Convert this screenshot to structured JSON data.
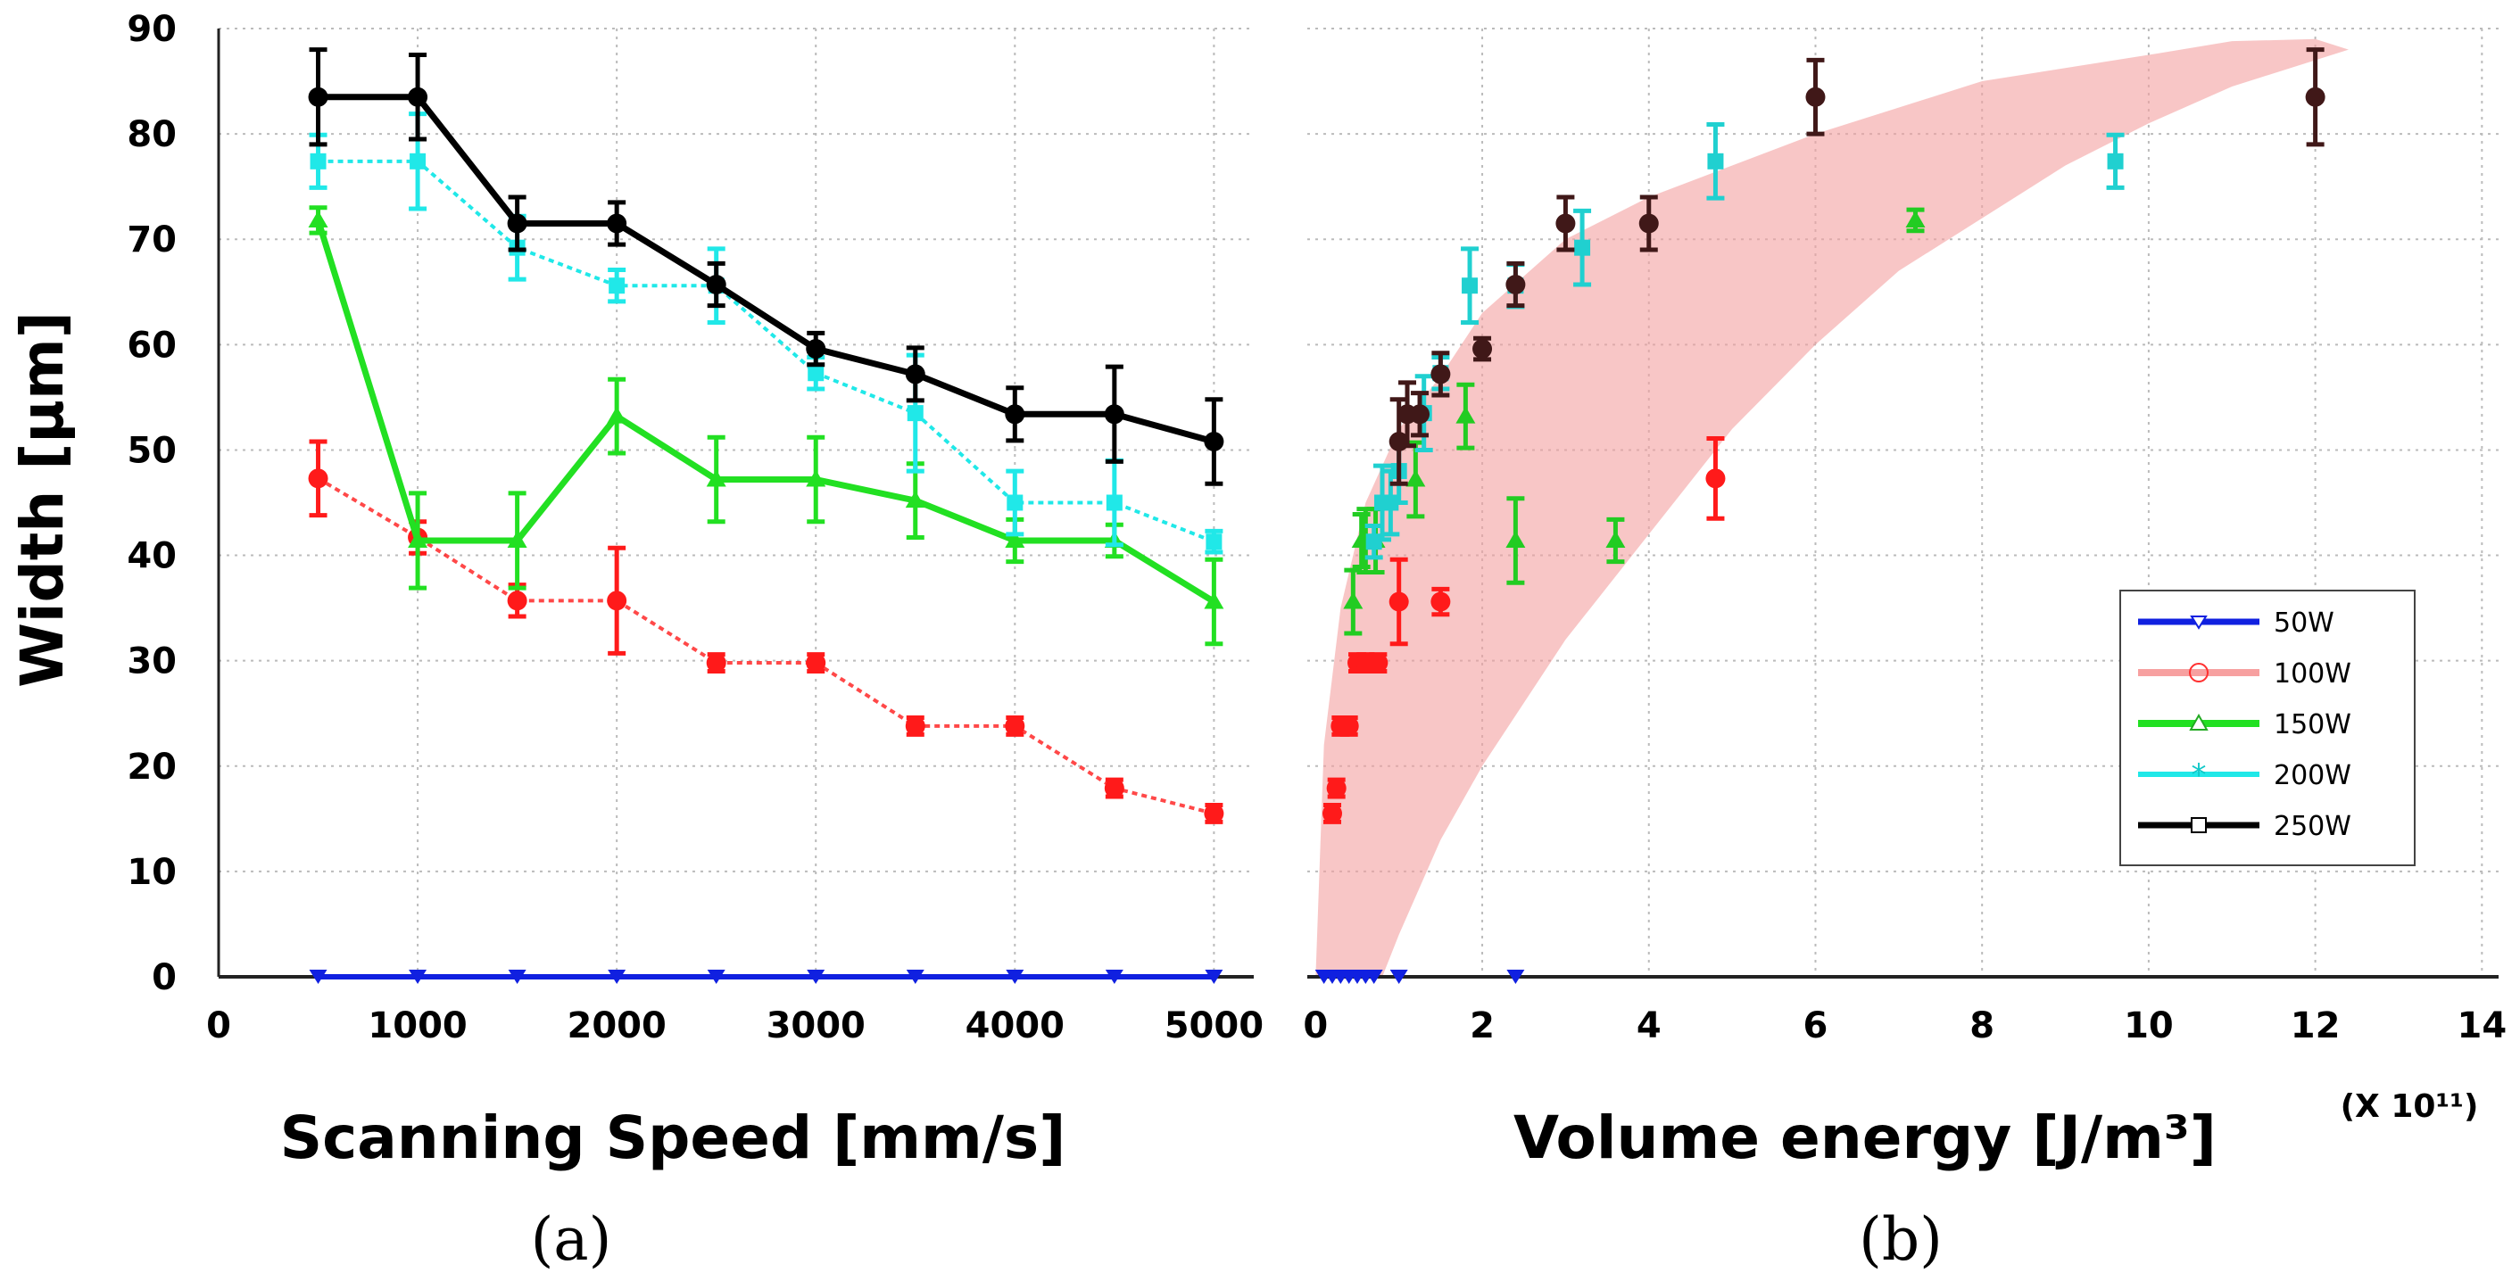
{
  "chart_data": [
    {
      "type": "line",
      "panel_label": "(a)",
      "xlabel": "Scanning Speed [mm/s]",
      "ylabel": "Width [µm]",
      "xlim": [
        0,
        5200
      ],
      "ylim": [
        0,
        90
      ],
      "xticks": [
        "0",
        "1000",
        "2000",
        "3000",
        "4000",
        "5000"
      ],
      "yticks": [
        "0",
        "10",
        "20",
        "30",
        "40",
        "50",
        "60",
        "70",
        "80",
        "90"
      ],
      "grid": true,
      "x": [
        500,
        1000,
        1500,
        2000,
        2500,
        3000,
        3500,
        4000,
        4500,
        5000
      ],
      "series": [
        {
          "name": "50W",
          "color": "#1020e0",
          "values": [
            0,
            0,
            0,
            0,
            0,
            0,
            0,
            0,
            0,
            0
          ],
          "err": [
            0,
            0,
            0,
            0,
            0,
            0,
            0,
            0,
            0,
            0
          ]
        },
        {
          "name": "100W",
          "color": "#ff1a1a",
          "values": [
            47.3,
            41.7,
            35.7,
            35.7,
            29.8,
            29.8,
            23.8,
            23.8,
            17.9,
            15.5
          ],
          "err": [
            3.5,
            1.5,
            1.5,
            5,
            0.8,
            0.8,
            0.8,
            0.8,
            0.8,
            0.8
          ]
        },
        {
          "name": "150W",
          "color": "#22e022",
          "values": [
            71.8,
            41.4,
            41.4,
            53.2,
            47.2,
            47.2,
            45.2,
            41.4,
            41.4,
            35.6
          ],
          "err": [
            1.2,
            4.5,
            4.5,
            3.5,
            4,
            4,
            3.5,
            2,
            1.5,
            4
          ]
        },
        {
          "name": "200W",
          "color": "#20e8e8",
          "values": [
            77.4,
            77.4,
            69.2,
            65.6,
            65.6,
            57.3,
            53.5,
            45,
            45,
            41.3
          ],
          "err": [
            2.5,
            4.5,
            3,
            1.5,
            3.5,
            1.5,
            5.5,
            3,
            4,
            1
          ]
        },
        {
          "name": "250W",
          "color": "#000000",
          "values": [
            83.5,
            83.5,
            71.5,
            71.5,
            65.7,
            59.6,
            57.2,
            53.4,
            53.4,
            50.8
          ],
          "err": [
            4.5,
            4,
            2.5,
            2,
            2,
            1.5,
            2.5,
            2.5,
            4.5,
            4
          ]
        }
      ]
    },
    {
      "type": "scatter",
      "panel_label": "(b)",
      "xlabel": "Volume energy [J/m³]",
      "x_multiplier": "(X 10¹¹)",
      "xlim": [
        -0.1,
        14.2
      ],
      "ylim": [
        0,
        90
      ],
      "xticks": [
        "0",
        "2",
        "4",
        "6",
        "8",
        "10",
        "12",
        "14"
      ],
      "grid": true,
      "band_color": "#f3a0a0",
      "band_upper": [
        [
          0,
          0
        ],
        [
          0.1,
          22
        ],
        [
          0.3,
          35
        ],
        [
          0.6,
          45
        ],
        [
          1,
          52
        ],
        [
          1.5,
          57
        ],
        [
          2,
          63
        ],
        [
          3,
          70
        ],
        [
          4,
          74
        ],
        [
          6,
          80
        ],
        [
          8,
          85
        ],
        [
          10,
          87.5
        ],
        [
          11,
          88.8
        ],
        [
          12,
          89
        ],
        [
          12.4,
          88
        ]
      ],
      "band_lower": [
        [
          0.8,
          0
        ],
        [
          1,
          4
        ],
        [
          1.5,
          13
        ],
        [
          2,
          20
        ],
        [
          3,
          32
        ],
        [
          4,
          42
        ],
        [
          5,
          52
        ],
        [
          6,
          60
        ],
        [
          7,
          67
        ],
        [
          8,
          72
        ],
        [
          9,
          77
        ],
        [
          10,
          81
        ],
        [
          11,
          84.5
        ],
        [
          12.4,
          88
        ]
      ],
      "series": [
        {
          "name": "50W",
          "color": "#1020e0",
          "x": [
            0.1,
            0.2,
            0.3,
            0.4,
            0.5,
            0.6,
            0.7,
            1.0,
            2.4
          ],
          "y": [
            0,
            0,
            0,
            0,
            0,
            0,
            0,
            0,
            0
          ],
          "err": [
            0,
            0,
            0,
            0,
            0,
            0,
            0,
            0,
            0
          ]
        },
        {
          "name": "100W",
          "color": "#ff1a1a",
          "x": [
            0.2,
            0.25,
            0.3,
            0.4,
            0.5,
            0.6,
            0.75,
            1.0,
            1.5,
            4.8
          ],
          "y": [
            15.5,
            17.9,
            23.8,
            23.8,
            29.8,
            29.8,
            29.8,
            35.6,
            35.6,
            47.3
          ],
          "err": [
            0.8,
            0.8,
            0.8,
            0.8,
            0.8,
            0.8,
            0.8,
            4,
            1.2,
            3.8
          ]
        },
        {
          "name": "150W",
          "color": "#22cc22",
          "x": [
            0.45,
            0.55,
            0.6,
            0.72,
            1.2,
            1.8,
            2.4,
            3.6,
            7.2
          ],
          "y": [
            35.6,
            41.4,
            41.4,
            41.4,
            47.2,
            53.2,
            41.4,
            41.4,
            71.8
          ],
          "err": [
            3,
            2.5,
            3,
            3,
            3.5,
            3,
            4,
            2,
            1
          ]
        },
        {
          "name": "200W",
          "color": "#20d0d0",
          "x": [
            0.7,
            0.8,
            0.9,
            1.0,
            1.3,
            1.5,
            1.85,
            2.4,
            3.2,
            4.8,
            9.6
          ],
          "y": [
            41.3,
            45,
            45,
            48,
            53.5,
            57.3,
            65.6,
            65.6,
            69.2,
            77.4,
            77.4
          ],
          "err": [
            1.5,
            3.5,
            3,
            3,
            3.5,
            1.5,
            3.5,
            2,
            3.5,
            3.5,
            2.5
          ]
        },
        {
          "name": "250W",
          "color": "#401818",
          "x": [
            1.0,
            1.1,
            1.25,
            1.5,
            2.0,
            2.4,
            3.0,
            4.0,
            6.0,
            12.0
          ],
          "y": [
            50.8,
            53.4,
            53.4,
            57.2,
            59.6,
            65.7,
            71.5,
            71.5,
            83.5,
            83.5
          ],
          "err": [
            4,
            3,
            2,
            2,
            1,
            2,
            2.5,
            2.5,
            3.5,
            4.5
          ]
        }
      ],
      "legend": {
        "placement": "right",
        "entries": [
          "50W",
          "100W",
          "150W",
          "200W",
          "250W"
        ]
      }
    }
  ]
}
